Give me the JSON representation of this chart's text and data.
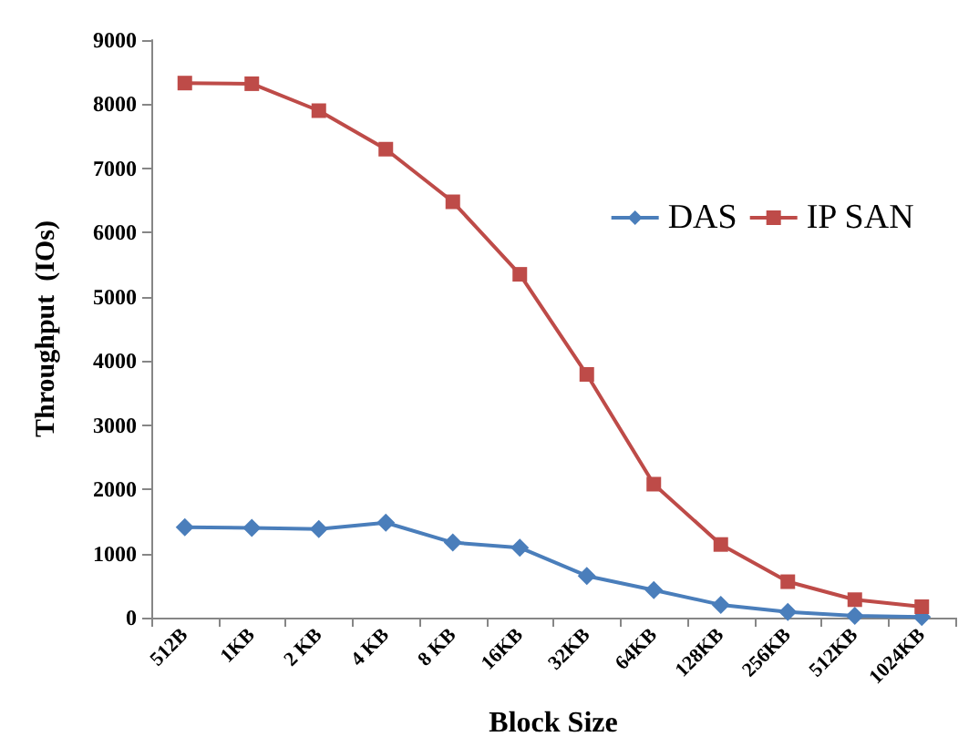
{
  "chart_data": {
    "type": "line",
    "xlabel": "Block Size",
    "ylabel": "Throughput  (IOs)",
    "categories": [
      "512B",
      "1KB",
      "2 KB",
      "4 KB",
      "8 KB",
      "16KB",
      "32KB",
      "64KB",
      "128KB",
      "256KB",
      "512KB",
      "1024KB"
    ],
    "series": [
      {
        "name": "DAS",
        "color": "#4a7ebb",
        "marker": "diamond",
        "values": [
          1410,
          1400,
          1380,
          1480,
          1170,
          1090,
          650,
          430,
          200,
          90,
          30,
          10
        ]
      },
      {
        "name": "IP SAN",
        "color": "#be4b48",
        "marker": "square",
        "values": [
          8330,
          8320,
          7900,
          7300,
          6480,
          5350,
          3790,
          2080,
          1140,
          560,
          280,
          170
        ]
      }
    ],
    "ylim": [
      0,
      9000
    ],
    "yticks": [
      0,
      1000,
      2000,
      3000,
      4000,
      5000,
      6000,
      7000,
      8000,
      9000
    ],
    "grid": false,
    "legend": "top right"
  }
}
